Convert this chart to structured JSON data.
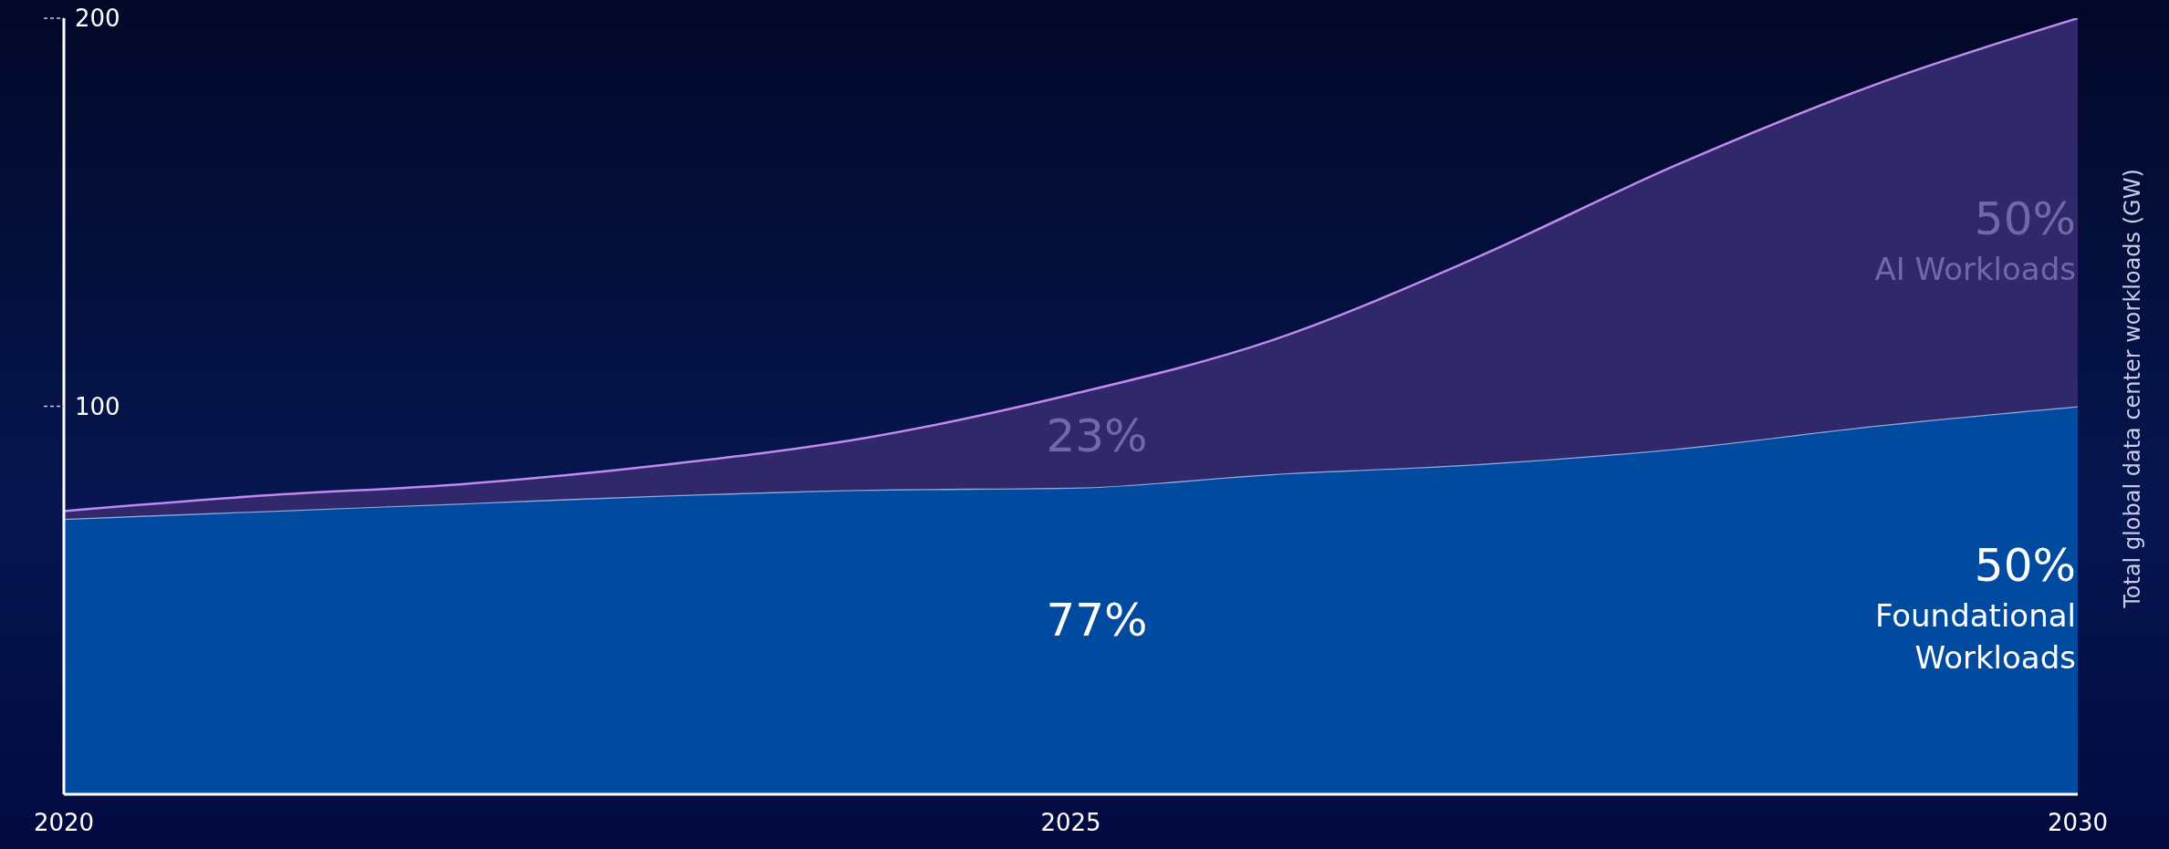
{
  "chart_data": {
    "type": "area",
    "stacked": true,
    "ylabel": "Total global data center workloads (GW)",
    "x": [
      2020,
      2021,
      2022,
      2023,
      2024,
      2025,
      2026,
      2027,
      2028,
      2029,
      2030
    ],
    "series": [
      {
        "name": "Foundational Workloads",
        "color": "#004a9f",
        "values": [
          71,
          73,
          75,
          77,
          78.5,
          79,
          82.5,
          85,
          89,
          95,
          100
        ]
      },
      {
        "name": "AI Workloads",
        "color": "#30286a",
        "values": [
          2,
          4,
          5,
          8,
          13.5,
          24,
          34.5,
          53,
          73,
          88,
          100
        ]
      }
    ],
    "xlim": [
      2020,
      2030
    ],
    "xticks": [
      2020,
      2025,
      2030
    ],
    "ylim": [
      0,
      200
    ],
    "yticks": [
      100,
      200
    ],
    "grid": false,
    "legend": false,
    "annotations": [
      "23%",
      "77%",
      "50%",
      "50%"
    ]
  }
}
